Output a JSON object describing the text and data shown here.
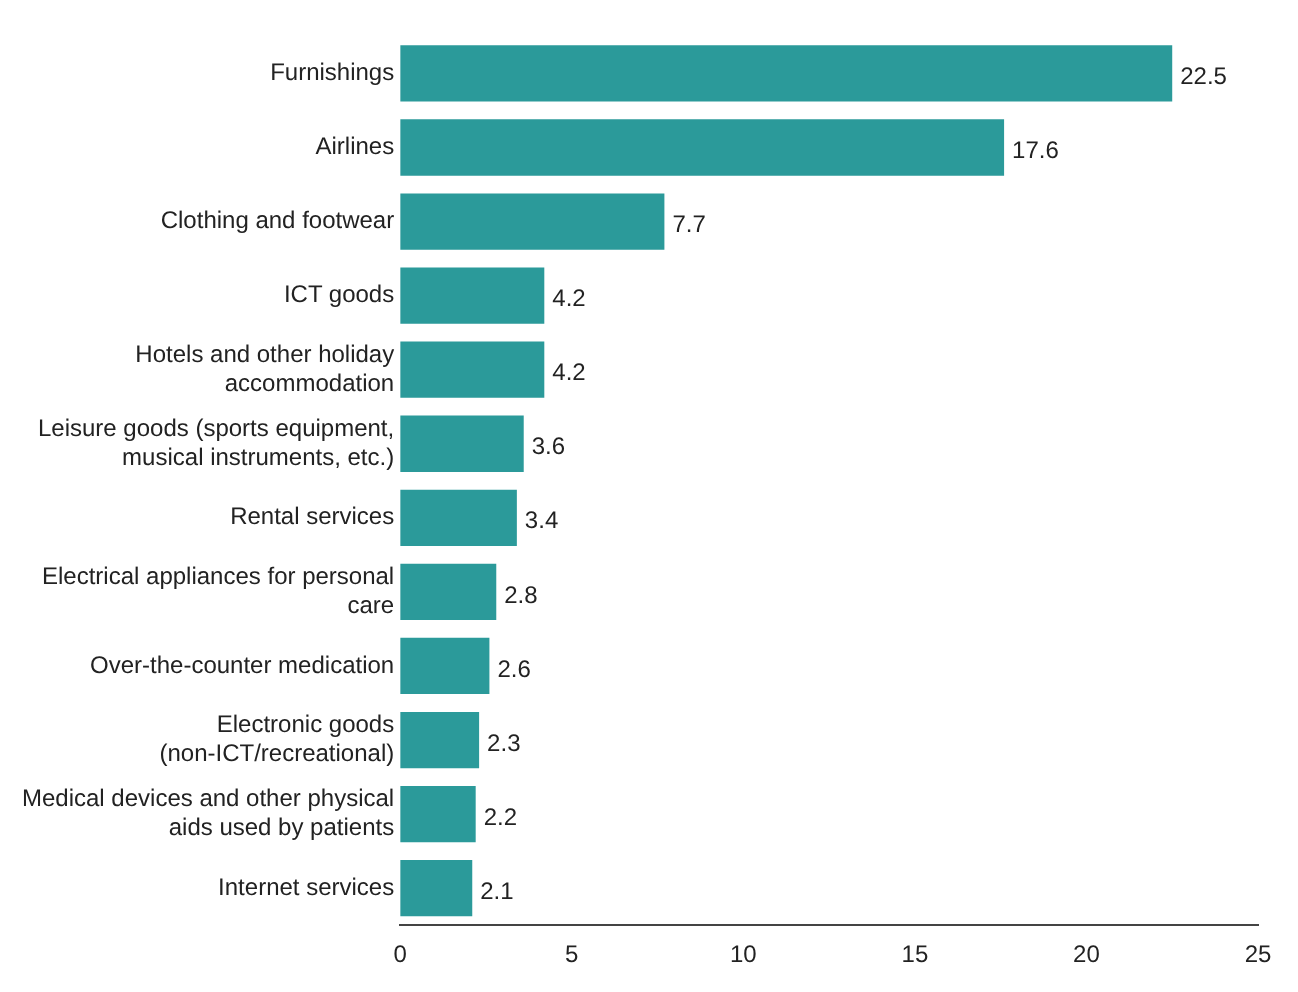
{
  "chart_data": {
    "type": "bar",
    "orientation": "horizontal",
    "categories": [
      "Furnishings",
      "Airlines",
      "Clothing and footwear",
      "ICT goods",
      "Hotels and other holiday accommodation",
      "Leisure goods (sports equipment, musical instruments, etc.)",
      "Rental services",
      "Electrical appliances for personal care",
      "Over-the-counter medication",
      "Electronic goods (non-ICT/recreational)",
      "Medical devices and other physical aids used by patients",
      "Internet services"
    ],
    "values": [
      22.5,
      17.6,
      7.7,
      4.2,
      4.2,
      3.6,
      3.4,
      2.8,
      2.6,
      2.3,
      2.2,
      2.1
    ],
    "color": "#2b9a9a",
    "xlim": [
      0,
      25
    ],
    "xticks": [
      0,
      5,
      10,
      15,
      20,
      25
    ],
    "grid": false,
    "data_labels": true
  }
}
